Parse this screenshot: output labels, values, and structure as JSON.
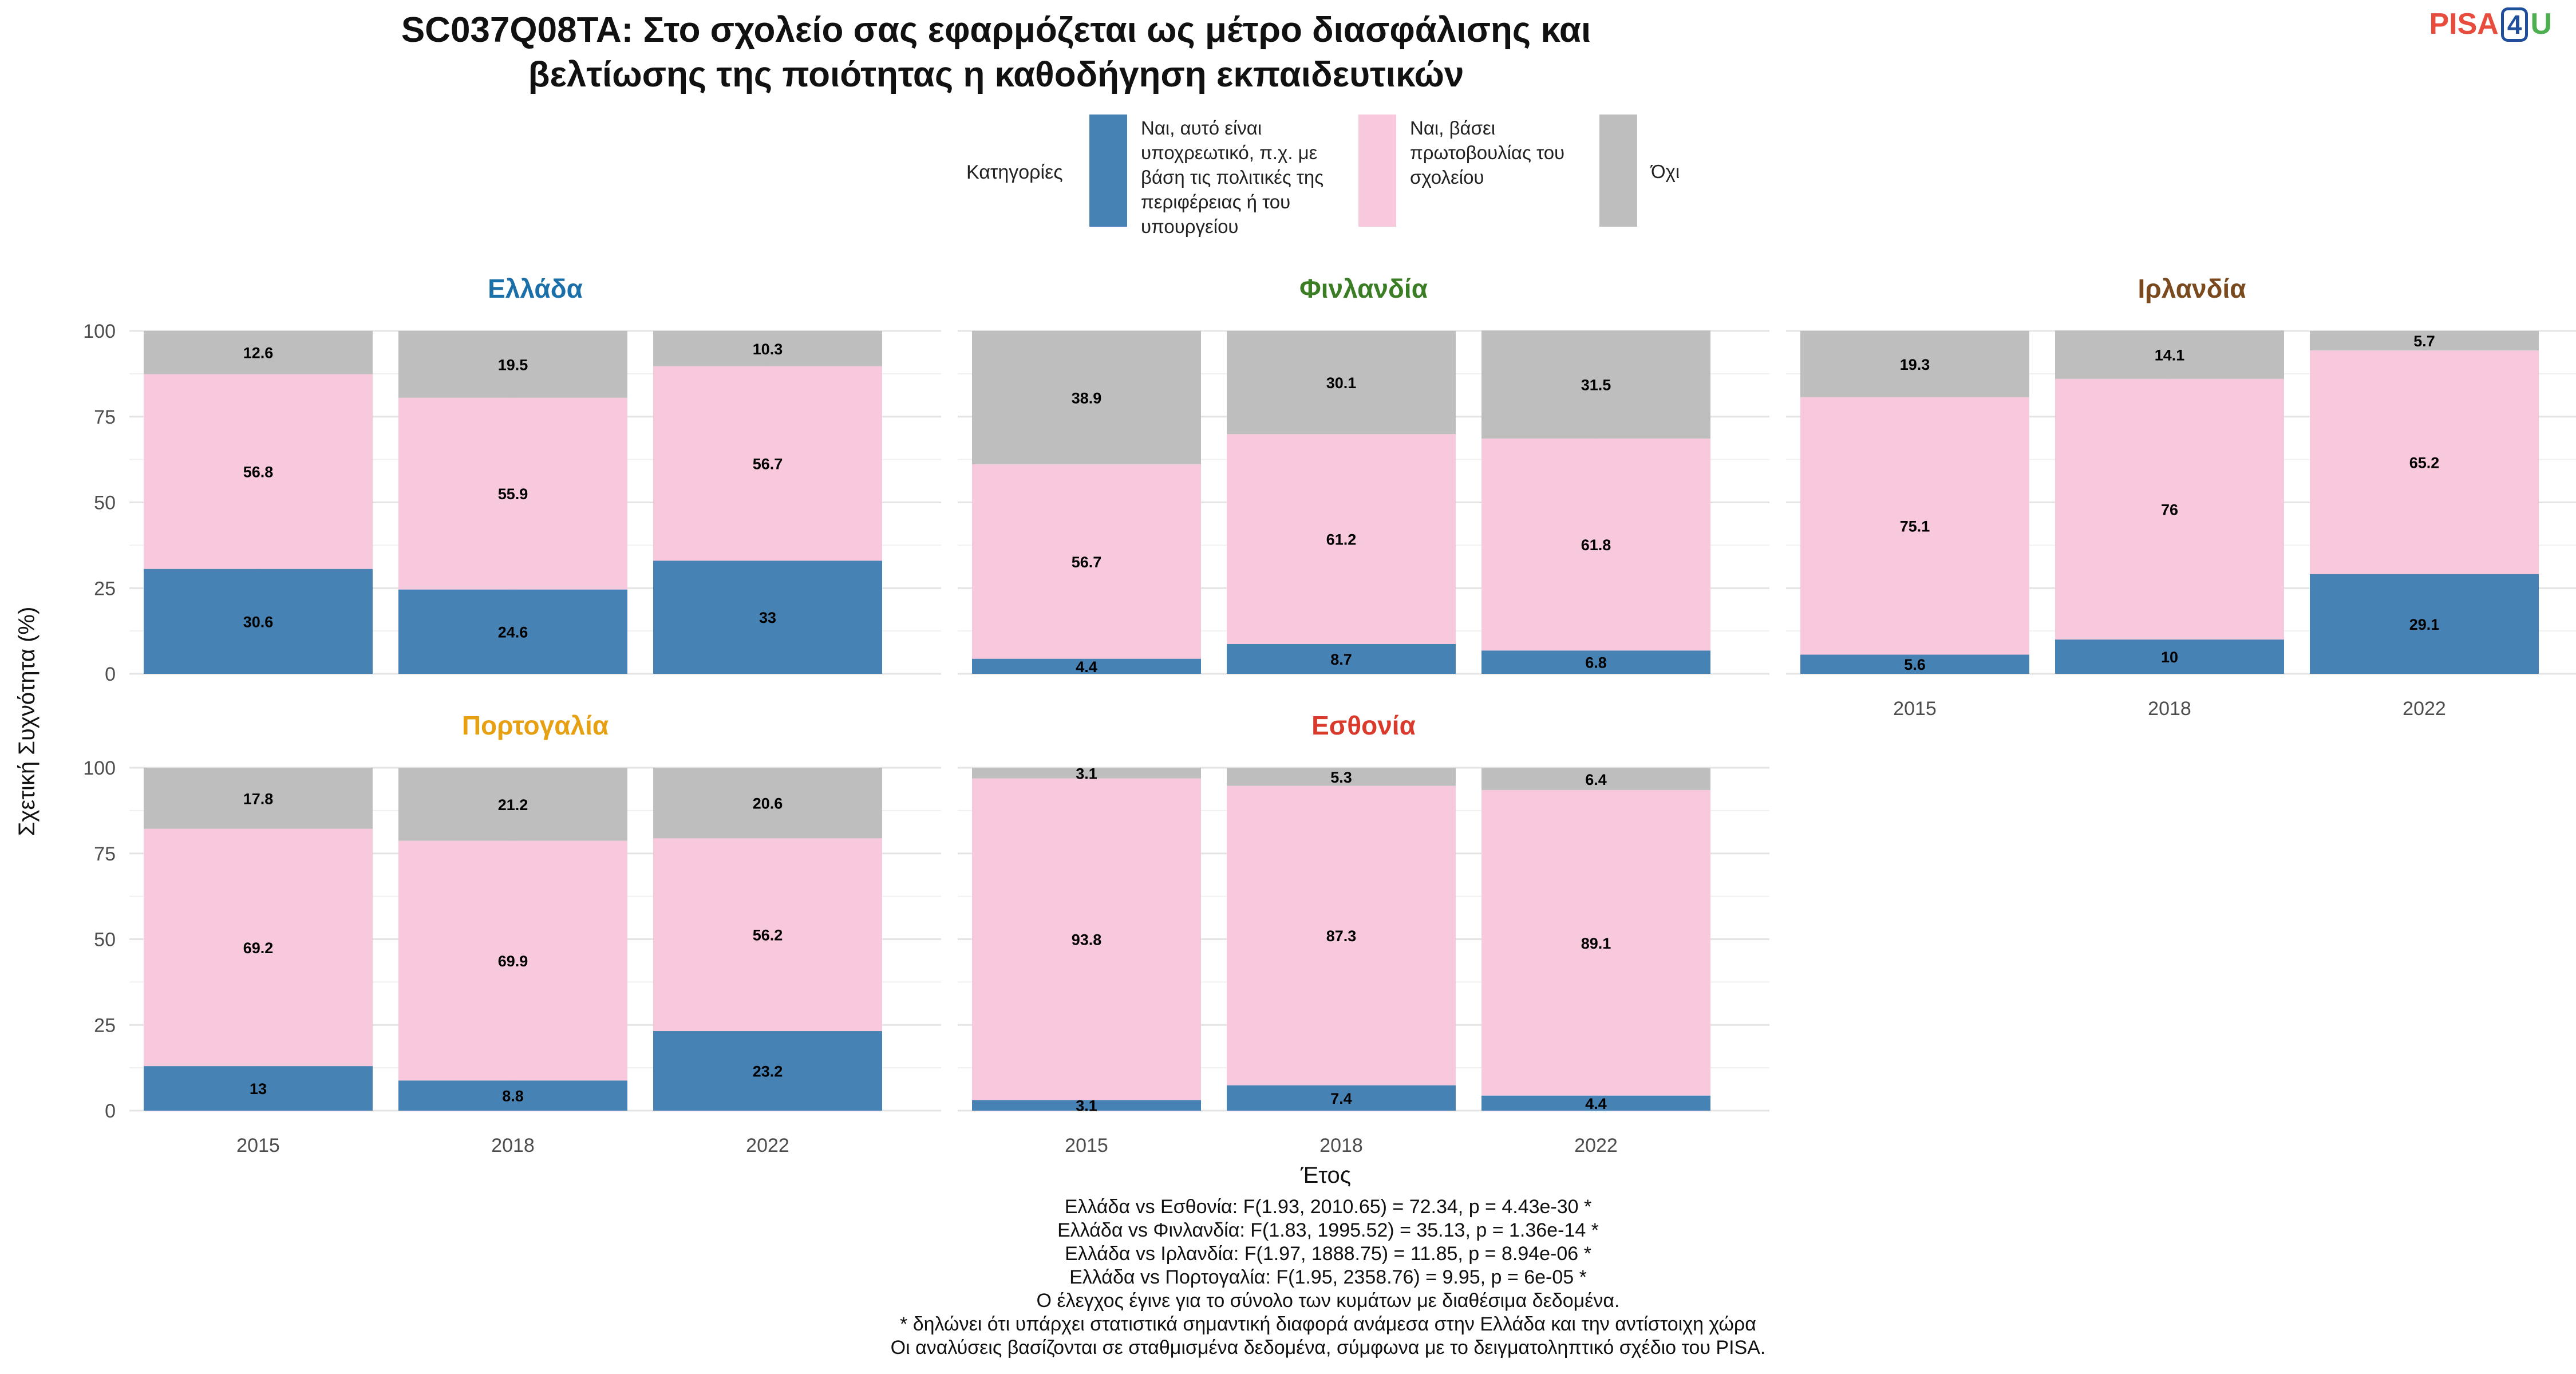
{
  "title_lines": [
    "SC037Q08TA: Στο σχολείο σας εφαρμόζεται ως μέτρο διασφάλισης και",
    "βελτίωσης της ποιότητας η καθοδήγηση εκπαιδευτικών"
  ],
  "logo": {
    "part1": "PISA",
    "part2": "4",
    "part3": "U"
  },
  "legend": {
    "title": "Κατηγορίες",
    "items": [
      {
        "label": "Ναι, αυτό είναι υποχρεωτικό, π.χ. με βάση τις πολιτικές της περιφέρειας ή του υπουργείου",
        "color": "#4682B4"
      },
      {
        "label": "Ναι, βάσει πρωτοβουλίας του σχολείου",
        "color": "#F8C8DC"
      },
      {
        "label": "Όχι",
        "color": "#BEBEBE"
      }
    ]
  },
  "footer_lines": [
    "Ελλάδα vs Εσθονία: F(1.93, 2010.65) = 72.34, p = 4.43e-30 *",
    "Ελλάδα vs Φινλανδία: F(1.83, 1995.52) = 35.13, p = 1.36e-14 *",
    "Ελλάδα vs Ιρλανδία: F(1.97, 1888.75) = 11.85, p = 8.94e-06 *",
    "Ελλάδα vs Πορτογαλία: F(1.95, 2358.76) = 9.95, p = 6e-05 *",
    "Ο έλεγχος έγινε για το σύνολο των κυμάτων με διαθέσιμα δεδομένα.",
    "* δηλώνει ότι υπάρχει στατιστικά σημαντική διαφορά ανάμεσα στην Ελλάδα και την αντίστοιχη χώρα",
    "Οι αναλύσεις βασίζονται σε σταθμισμένα δεδομένα, σύμφωνα με το δειγματοληπτικό σχέδιο του PISA."
  ],
  "chart_data": {
    "type": "bar",
    "stacked": true,
    "xlabel": "Έτος",
    "ylabel": "Σχετική Συχνότητα (%)",
    "ylim": [
      0,
      100
    ],
    "yticks": [
      0,
      25,
      50,
      75,
      100
    ],
    "categories": [
      "2015",
      "2018",
      "2022"
    ],
    "series_names": [
      "Ναι, αυτό είναι υποχρεωτικό, π.χ. με βάση τις πολιτικές της περιφέρειας ή του υπουργείου",
      "Ναι, βάσει πρωτοβουλίας του σχολείου",
      "Όχι"
    ],
    "series_colors": [
      "#4682B4",
      "#F8C8DC",
      "#BEBEBE"
    ],
    "panels": [
      {
        "title": "Ελλάδα",
        "title_color": "#1B6FA8",
        "values": [
          [
            30.6,
            56.8,
            12.6
          ],
          [
            24.6,
            55.9,
            19.5
          ],
          [
            33,
            56.7,
            10.3
          ]
        ]
      },
      {
        "title": "Φινλανδία",
        "title_color": "#3A7D24",
        "values": [
          [
            4.4,
            56.7,
            38.9
          ],
          [
            8.7,
            61.2,
            30.1
          ],
          [
            6.8,
            61.8,
            31.5
          ]
        ]
      },
      {
        "title": "Ιρλανδία",
        "title_color": "#7A4A1E",
        "values": [
          [
            5.6,
            75.1,
            19.3
          ],
          [
            10,
            76,
            14.1
          ],
          [
            29.1,
            65.2,
            5.7
          ]
        ]
      },
      {
        "title": "Πορτογαλία",
        "title_color": "#E6A012",
        "values": [
          [
            13,
            69.2,
            17.8
          ],
          [
            8.8,
            69.9,
            21.2
          ],
          [
            23.2,
            56.2,
            20.6
          ]
        ]
      },
      {
        "title": "Εσθονία",
        "title_color": "#D93A2B",
        "values": [
          [
            3.1,
            93.8,
            3.1
          ],
          [
            7.4,
            87.3,
            5.3
          ],
          [
            4.4,
            89.1,
            6.4
          ]
        ]
      }
    ]
  }
}
